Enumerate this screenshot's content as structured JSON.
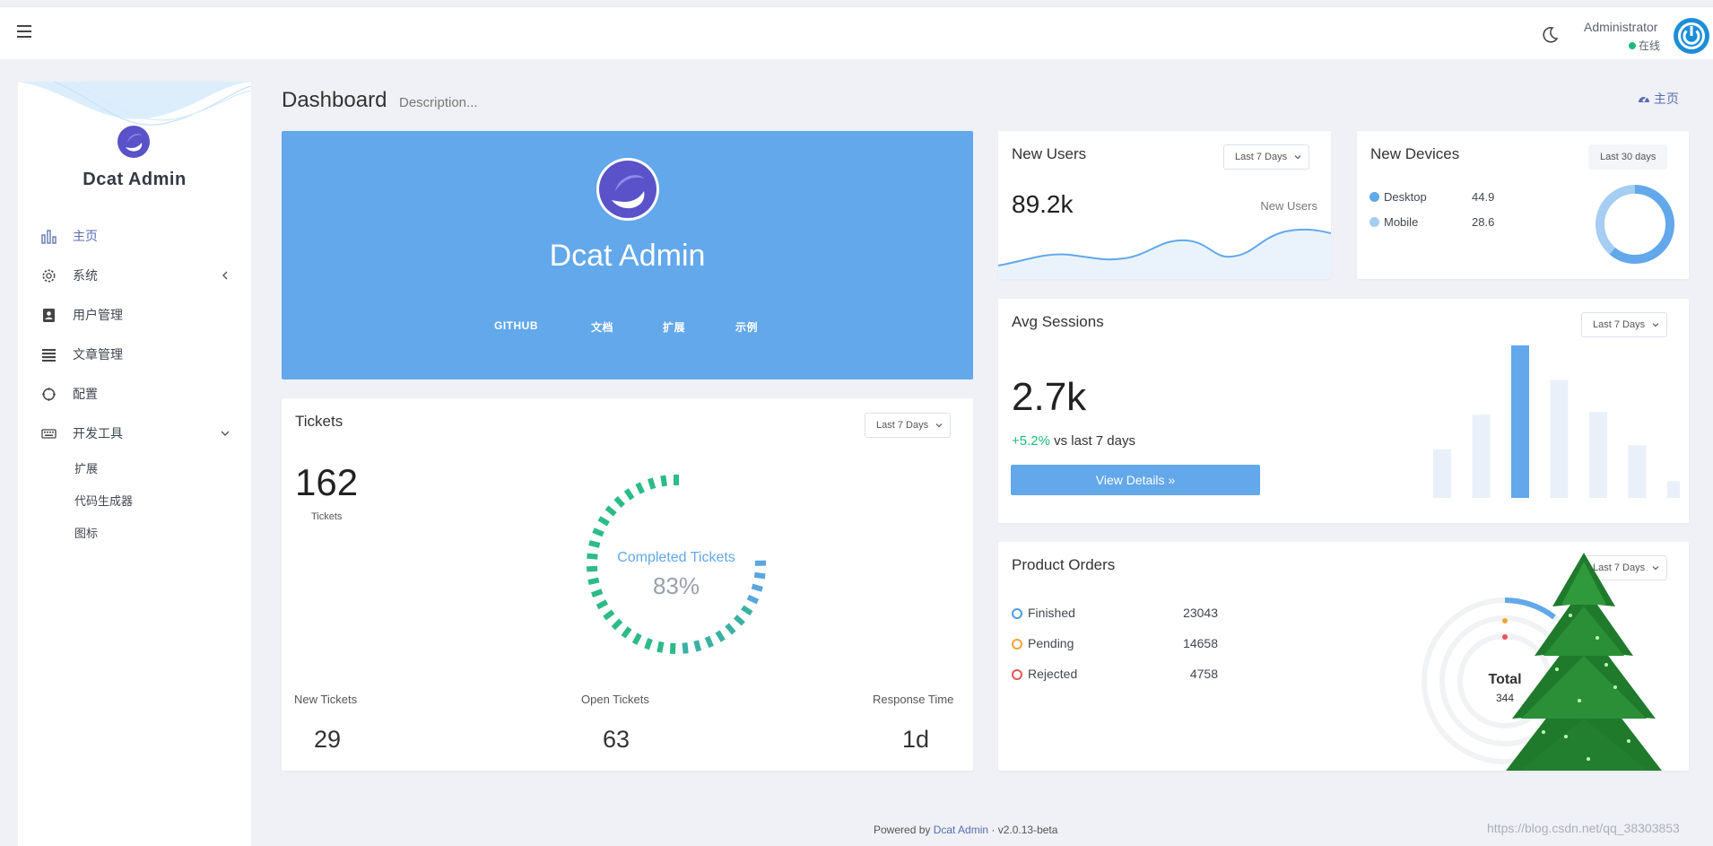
{
  "topbar": {
    "user_name": "Administrator",
    "user_status": "在线"
  },
  "sidebar": {
    "brand": "Dcat Admin",
    "items": [
      {
        "label": "主页",
        "icon": "bar-chart-icon"
      },
      {
        "label": "系统",
        "icon": "gear-icon"
      },
      {
        "label": "用户管理",
        "icon": "address-book-icon"
      },
      {
        "label": "文章管理",
        "icon": "list-icon"
      },
      {
        "label": "配置",
        "icon": "circle-notch-icon"
      },
      {
        "label": "开发工具",
        "icon": "keyboard-icon"
      }
    ],
    "subitems": [
      "扩展",
      "代码生成器",
      "图标"
    ]
  },
  "header": {
    "title": "Dashboard",
    "description": "Description...",
    "breadcrumb": "主页"
  },
  "hero": {
    "title": "Dcat Admin",
    "links": [
      "GITHUB",
      "文档",
      "扩展",
      "示例"
    ]
  },
  "tickets": {
    "title": "Tickets",
    "filter": "Last 7 Days",
    "value": "162",
    "value_label": "Tickets",
    "gauge_label": "Completed Tickets",
    "gauge_percent": 83,
    "gauge_text": "83%",
    "stats": [
      {
        "label": "New Tickets",
        "value": "29"
      },
      {
        "label": "Open Tickets",
        "value": "63"
      },
      {
        "label": "Response Time",
        "value": "1d"
      }
    ]
  },
  "new_users": {
    "title": "New Users",
    "filter": "Last 7 Days",
    "value": "89.2k",
    "caption": "New Users"
  },
  "new_devices": {
    "title": "New Devices",
    "filter": "Last 30 days",
    "rows": [
      {
        "label": "Desktop",
        "value": "44.9",
        "color": "#62a8ea"
      },
      {
        "label": "Mobile",
        "value": "28.6",
        "color": "#a6cdf2"
      }
    ]
  },
  "avg_sessions": {
    "title": "Avg Sessions",
    "filter": "Last 7 Days",
    "value": "2.7k",
    "change": "+5.2%",
    "change_suffix": " vs last 7 days",
    "button": "View Details",
    "bars": [
      35,
      60,
      110,
      85,
      62,
      38,
      12
    ]
  },
  "product_orders": {
    "title": "Product Orders",
    "filter": "Last 7 Days",
    "rows": [
      {
        "label": "Finished",
        "value": "23043",
        "color": "#4b9be8"
      },
      {
        "label": "Pending",
        "value": "14658",
        "color": "#f0a537"
      },
      {
        "label": "Rejected",
        "value": "4758",
        "color": "#ea5455"
      }
    ],
    "total_label": "Total",
    "total_value": "344"
  },
  "footer": {
    "prefix": "Powered by ",
    "link": "Dcat Admin",
    "version": " · v2.0.13-beta"
  },
  "watermark": "https://blog.csdn.net/qq_38303853"
}
